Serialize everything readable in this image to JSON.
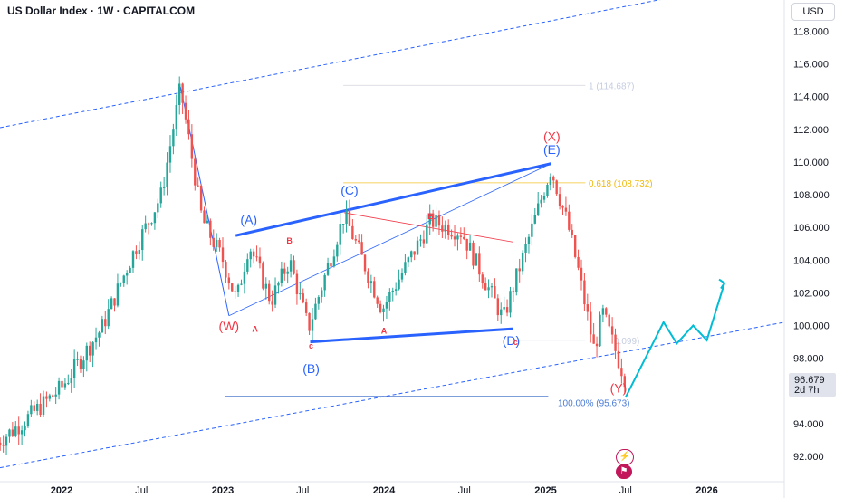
{
  "header": {
    "symbol_title": "US Dollar Index · 1W · CAPITALCOM"
  },
  "price_scale": {
    "currency": "USD"
  },
  "last_price": {
    "value": "96.679",
    "countdown": "2d 7h"
  },
  "icons": {
    "event_icon": "lightning-icon",
    "flag_icon": "us-flag-icon"
  },
  "colors": {
    "bull": "#26a69a",
    "bear": "#ef5350",
    "wave_blue": "#2962ff",
    "wave_red": "#f23645",
    "projection": "#00bcd4",
    "fib_yellow": "#f7d774",
    "fib_text_yellow": "#f0b90b",
    "fib_blue": "#6b8fd6"
  },
  "chart_data": {
    "type": "candlestick",
    "title": "US Dollar Index · 1W · CAPITALCOM",
    "x_tick_labels": [
      "2022",
      "Jul",
      "2023",
      "Jul",
      "2024",
      "Jul",
      "2025",
      "Jul",
      "2026"
    ],
    "y_tick_labels": [
      "92.000",
      "94.000",
      "96.000",
      "98.000",
      "100.000",
      "102.000",
      "104.000",
      "106.000",
      "108.000",
      "110.000",
      "112.000",
      "114.000",
      "116.000",
      "118.000"
    ],
    "ylim": [
      91,
      120
    ],
    "anchors": [
      {
        "date": "2021-08-01",
        "close": 92.7
      },
      {
        "date": "2021-10-01",
        "close": 94.0
      },
      {
        "date": "2022-01-01",
        "close": 96.2
      },
      {
        "date": "2022-04-01",
        "close": 99.8
      },
      {
        "date": "2022-06-15",
        "close": 104.6
      },
      {
        "date": "2022-08-15",
        "close": 108.0
      },
      {
        "date": "2022-09-27",
        "close": 114.5
      },
      {
        "date": "2022-11-15",
        "close": 106.5
      },
      {
        "date": "2023-01-01",
        "close": 104.0
      },
      {
        "date": "2023-02-01",
        "close": 101.5
      },
      {
        "date": "2023-03-01",
        "close": 105.0
      },
      {
        "date": "2023-04-20",
        "close": 101.5
      },
      {
        "date": "2023-06-01",
        "close": 104.0
      },
      {
        "date": "2023-07-14",
        "close": 99.8
      },
      {
        "date": "2023-10-03",
        "close": 106.8
      },
      {
        "date": "2023-12-28",
        "close": 101.0
      },
      {
        "date": "2024-04-16",
        "close": 106.4
      },
      {
        "date": "2024-06-25",
        "close": 105.7
      },
      {
        "date": "2024-09-27",
        "close": 100.4
      },
      {
        "date": "2025-01-13",
        "close": 109.6
      },
      {
        "date": "2025-02-20",
        "close": 106.2
      },
      {
        "date": "2025-03-15",
        "close": 103.5
      },
      {
        "date": "2025-04-21",
        "close": 98.5
      },
      {
        "date": "2025-05-10",
        "close": 100.8
      },
      {
        "date": "2025-06-20",
        "close": 97.5
      },
      {
        "date": "2025-07-01",
        "close": 96.7
      }
    ],
    "annotations": {
      "wave_labels": [
        {
          "text": "(W)",
          "date": "2023-01-15",
          "price": 99.7,
          "color": "red"
        },
        {
          "text": "A",
          "date": "2023-03-15",
          "price": 99.6,
          "color": "red"
        },
        {
          "text": "B",
          "date": "2023-06-01",
          "price": 105.0,
          "color": "red"
        },
        {
          "text": "c",
          "date": "2023-07-20",
          "price": 98.6,
          "color": "red"
        },
        {
          "text": "(A)",
          "date": "2023-03-01",
          "price": 106.2,
          "color": "blue"
        },
        {
          "text": "(B)",
          "date": "2023-07-20",
          "price": 97.1,
          "color": "blue"
        },
        {
          "text": "(C)",
          "date": "2023-10-15",
          "price": 108.0,
          "color": "blue"
        },
        {
          "text": "A",
          "date": "2024-01-01",
          "price": 99.5,
          "color": "red"
        },
        {
          "text": "B",
          "date": "2024-04-15",
          "price": 106.5,
          "color": "red"
        },
        {
          "text": "(D)",
          "date": "2024-10-15",
          "price": 98.8,
          "color": "blue"
        },
        {
          "text": "c",
          "date": "2024-10-25",
          "price": 98.8,
          "color": "red"
        },
        {
          "text": "(X)",
          "date": "2025-01-15",
          "price": 111.3,
          "color": "red"
        },
        {
          "text": "(E)",
          "date": "2025-01-15",
          "price": 110.5,
          "color": "blue"
        },
        {
          "text": "(Y)",
          "date": "2025-06-15",
          "price": 95.9,
          "color": "red"
        }
      ],
      "fib_labels": [
        {
          "text": "1 (114.687)",
          "price": 114.687
        },
        {
          "text": "0.618 (108.732)",
          "price": 108.732
        },
        {
          "text": "0.099)",
          "price": 99.099
        },
        {
          "text": "100.00% (95.673)",
          "price": 95.673
        }
      ],
      "projection_path": [
        {
          "date": "2025-07-01",
          "price": 95.6
        },
        {
          "date": "2025-09-25",
          "price": 100.2
        },
        {
          "date": "2025-10-25",
          "price": 98.9
        },
        {
          "date": "2025-12-01",
          "price": 100.0
        },
        {
          "date": "2026-01-01",
          "price": 99.1
        },
        {
          "date": "2026-02-10",
          "price": 102.6
        }
      ]
    }
  }
}
